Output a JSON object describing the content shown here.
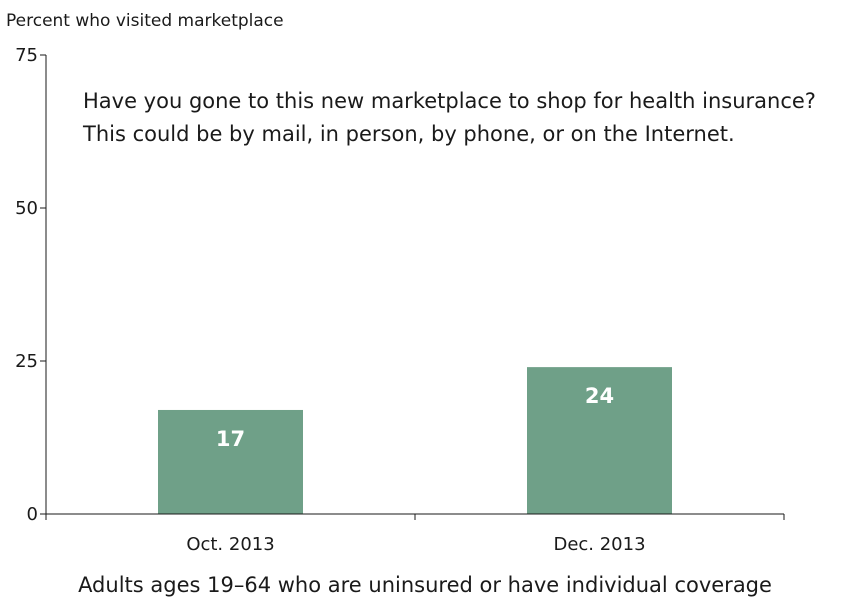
{
  "chart_data": {
    "type": "bar",
    "ylabel": "Percent who visited marketplace",
    "xlabel": "Adults ages 19–64 who are uninsured or have individual coverage",
    "annotation": [
      "Have you gone to this new marketplace to shop for health insurance?",
      "This could be by mail, in person, by phone, or on the Internet."
    ],
    "categories": [
      "Oct. 2013",
      "Dec. 2013"
    ],
    "values": [
      17,
      24
    ],
    "data_labels": [
      "17",
      "24"
    ],
    "ylim": [
      0,
      75
    ],
    "yticks": [
      0,
      25,
      50,
      75
    ],
    "ytick_labels": [
      "0",
      "25",
      "50",
      "75"
    ],
    "grid": false,
    "bar_color": "#6fa088",
    "axis_color": "#1a1a1a"
  }
}
